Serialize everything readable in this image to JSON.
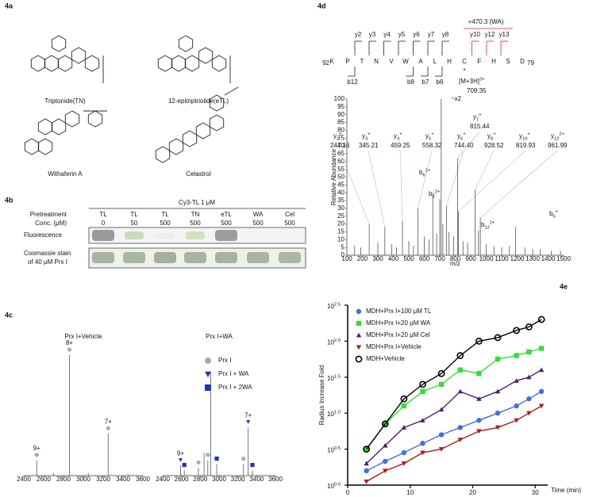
{
  "figure_4a": {
    "label": "4a",
    "compounds": [
      "Triptonide(TN)",
      "12-epitriptriolide(eTL)",
      "Withaferin A",
      "Celastrol"
    ]
  },
  "figure_4b": {
    "label": "4b",
    "treatment": "Cy3-TL 1 μM",
    "row_labels": [
      "Pretreatment",
      "Conc. (μM)"
    ],
    "pretreatment": [
      "TL",
      "TL",
      "TL",
      "TN",
      "eTL",
      "WA",
      "Cel"
    ],
    "conc": [
      0,
      50,
      500,
      500,
      500,
      500,
      500
    ],
    "fluorescence_label": "Fluorescence",
    "coomassie_label": [
      "Coomassie stain",
      "of 40 μM Prx I"
    ]
  },
  "peptide_map": {
    "residues": [
      "K",
      "P",
      "T",
      "N",
      "V",
      "W",
      "A",
      "L",
      "H",
      "C",
      "F",
      "H",
      "S",
      "D"
    ],
    "start": 92,
    "end": 79,
    "y_ions": [
      "y2",
      "y3",
      "y4",
      "y5",
      "y6",
      "y7",
      "y8"
    ],
    "y_ions_modified": [
      "y10",
      "y12",
      "y13"
    ],
    "b_ions": [
      "b12",
      "b8",
      "b7",
      "b6"
    ],
    "modification": "+470.3 (WA)",
    "modified_mark": "*"
  },
  "chart_data": [
    {
      "panel": "4c",
      "type": "spectrum",
      "title": "Prx I+Vehicle",
      "x": [
        2530,
        2860,
        3250,
        2700,
        3050,
        3450
      ],
      "values": [
        12,
        95,
        33,
        2,
        2,
        1
      ],
      "charge_labels": [
        "9+",
        "8+",
        "7+",
        null,
        null,
        null
      ],
      "peak_species": [
        "Prx I",
        "Prx I",
        "Prx I",
        null,
        null,
        null
      ],
      "xlim": [
        2400,
        3600
      ],
      "xticks": [
        2400,
        2600,
        2800,
        3000,
        3200,
        3400,
        3600
      ],
      "ylim": [
        0,
        100
      ],
      "color": "#555555"
    },
    {
      "type": "spectrum",
      "title": "Prx I+WA",
      "x": [
        2590,
        2630,
        2780,
        2840,
        2880,
        2910,
        2975,
        3260,
        3310,
        3355
      ],
      "values": [
        8,
        4,
        6,
        18,
        12,
        82,
        9,
        9,
        38,
        4
      ],
      "charge_labels": [
        "9+",
        null,
        null,
        null,
        null,
        null,
        null,
        null,
        "7+",
        null
      ],
      "peak_species": [
        "Prx I + WA",
        "Prx I + 2WA",
        "Prx I",
        null,
        "Prx I",
        null,
        "Prx I + 2WA",
        "Prx I",
        "Prx I + WA",
        "Prx I + 2WA"
      ],
      "legend": [
        {
          "name": "Prx I",
          "color": "#aaaaaa",
          "marker": "circle"
        },
        {
          "name": "Prx I + WA",
          "color": "#2233bb",
          "marker": "triangle-down"
        },
        {
          "name": "Prx I + 2WA",
          "color": "#2233bb",
          "marker": "square"
        }
      ],
      "xlim": [
        2400,
        3600
      ],
      "xticks": [
        2400,
        2600,
        2800,
        3000,
        3200,
        3400,
        3600
      ],
      "ylim": [
        0,
        100
      ],
      "color": "#555555"
    },
    {
      "panel": "4d",
      "type": "spectrum",
      "xlabel": "m/z",
      "ylabel": "Relative Abundance",
      "x": [
        244.16,
        345.21,
        459.25,
        558.32,
        744.4,
        928.52,
        819.93,
        961.99,
        815.44,
        709.35,
        655,
        700,
        950,
        1190,
        150,
        190,
        300,
        390,
        420,
        500,
        530,
        600,
        630,
        680,
        720,
        760,
        790,
        850,
        880,
        1000,
        1050,
        1100,
        1150,
        1250,
        1300,
        1350,
        1420,
        1480
      ],
      "values": [
        20,
        18,
        22,
        30,
        32,
        42,
        28,
        24,
        62,
        100,
        40,
        36,
        16,
        18,
        6,
        5,
        8,
        7,
        5,
        9,
        6,
        12,
        10,
        14,
        20,
        15,
        12,
        9,
        8,
        7,
        6,
        5,
        6,
        5,
        4,
        4,
        3,
        3
      ],
      "annotations": [
        {
          "ion": "y",
          "sub": "2",
          "sup": "+",
          "mz": "244.16",
          "color": "#000000"
        },
        {
          "ion": "y",
          "sub": "3",
          "sup": "+",
          "mz": "345.21",
          "color": "#000000"
        },
        {
          "ion": "y",
          "sub": "4",
          "sup": "+",
          "mz": "459.25",
          "color": "#000000"
        },
        {
          "ion": "y",
          "sub": "5",
          "sup": "+",
          "mz": "558.32",
          "color": "#000000"
        },
        {
          "ion": "y",
          "sub": "6",
          "sup": "+",
          "mz": "744.40",
          "color": "#000000"
        },
        {
          "ion": "y",
          "sub": "8",
          "sup": "+",
          "mz": "928.52",
          "color": "#000000"
        },
        {
          "ion": "y",
          "sub": "10",
          "sup": "+",
          "mz": "819.93",
          "color": "#dd2222"
        },
        {
          "ion": "y",
          "sub": "12",
          "sup": "2+",
          "mz": "961.99",
          "color": "#dd2222"
        },
        {
          "ion": "y",
          "sub": "7",
          "sup": "+",
          "mz": "815.44",
          "color": "#000000"
        },
        {
          "ion": "[M+3H]",
          "sup": "3+",
          "mz": "709.35",
          "note": "~x2",
          "color": "#dd2222"
        },
        {
          "ion": "b",
          "sub": "6",
          "sup": "2+",
          "color": "#dd2222"
        },
        {
          "ion": "b",
          "sub": "8",
          "sup": "2+",
          "color": "#dd2222"
        },
        {
          "ion": "b",
          "sub": "12",
          "sup": "2+",
          "color": "#dd2222"
        },
        {
          "ion": "b",
          "sub": "6",
          "sup": "+",
          "color": "#dd2222"
        },
        null,
        null,
        null,
        null,
        null,
        null,
        null,
        null,
        null,
        null,
        null,
        null,
        null,
        null,
        null,
        null,
        null,
        null,
        null,
        null,
        null,
        null,
        null,
        null
      ],
      "xlim": [
        100,
        1500
      ],
      "xticks": [
        100,
        200,
        300,
        400,
        500,
        600,
        700,
        800,
        900,
        1000,
        1100,
        1200,
        1300,
        1400,
        1500
      ],
      "ylim": [
        0,
        100
      ],
      "yticks": [
        0,
        5,
        10,
        15,
        20,
        25,
        30,
        35,
        40,
        45,
        50,
        55,
        60,
        65,
        70,
        75,
        80,
        85,
        90,
        95,
        100
      ],
      "color": "#555555",
      "leader_color": "#9cc8d8"
    },
    {
      "panel": "4e",
      "type": "line",
      "xlabel": "Time (min)",
      "ylabel": "Radius Increase Fold",
      "log_y": true,
      "x": [
        3,
        6,
        9,
        12,
        15,
        18,
        21,
        24,
        27,
        29,
        31
      ],
      "series": [
        {
          "name": "MDH+Prx I+100 μM TL",
          "color": "#3f6fe0",
          "marker": "circle",
          "values": [
            1.58,
            2.14,
            2.82,
            3.8,
            5.01,
            6.31,
            7.94,
            10,
            12.6,
            15.8,
            20
          ]
        },
        {
          "name": "MDH+Prx I+20 μM WA",
          "color": "#33dd33",
          "marker": "square",
          "values": [
            3.16,
            7.08,
            12.6,
            20,
            25.1,
            39.8,
            35.5,
            56.2,
            63.1,
            70.8,
            79.4
          ]
        },
        {
          "name": "MDH+Prx I+20 μM Cel",
          "color": "#4a1f70",
          "marker": "triangle-up",
          "values": [
            2,
            3.55,
            6.31,
            7.94,
            11.2,
            20,
            15.8,
            20,
            28.2,
            31.6,
            39.8
          ]
        },
        {
          "name": "MDH+Prx I+Vehicle",
          "color": "#a81c1c",
          "marker": "triangle-down",
          "values": [
            1.12,
            1.58,
            2,
            2.82,
            3.16,
            4.27,
            5.62,
            6.31,
            7.94,
            10,
            12.6
          ]
        },
        {
          "name": "MDH+Vehicle",
          "color": "#000000",
          "marker": "open-circle",
          "values": [
            3.16,
            7.08,
            15.8,
            25.1,
            35.5,
            63.1,
            100,
            112,
            141,
            158,
            200
          ]
        }
      ],
      "xlim": [
        0,
        32
      ],
      "xticks": [
        0,
        10,
        20,
        30
      ],
      "ylim": [
        1,
        316.2
      ],
      "yticks": [
        {
          "value": 1,
          "label": "10",
          "exponent": "0.0"
        },
        {
          "value": 3.162,
          "label": "10",
          "exponent": "0.5"
        },
        {
          "value": 10,
          "label": "10",
          "exponent": "1.0"
        },
        {
          "value": 31.62,
          "label": "10",
          "exponent": "1.5"
        },
        {
          "value": 100,
          "label": "10",
          "exponent": "2.0"
        },
        {
          "value": 316.2,
          "label": "10",
          "exponent": "2.5"
        }
      ]
    }
  ]
}
